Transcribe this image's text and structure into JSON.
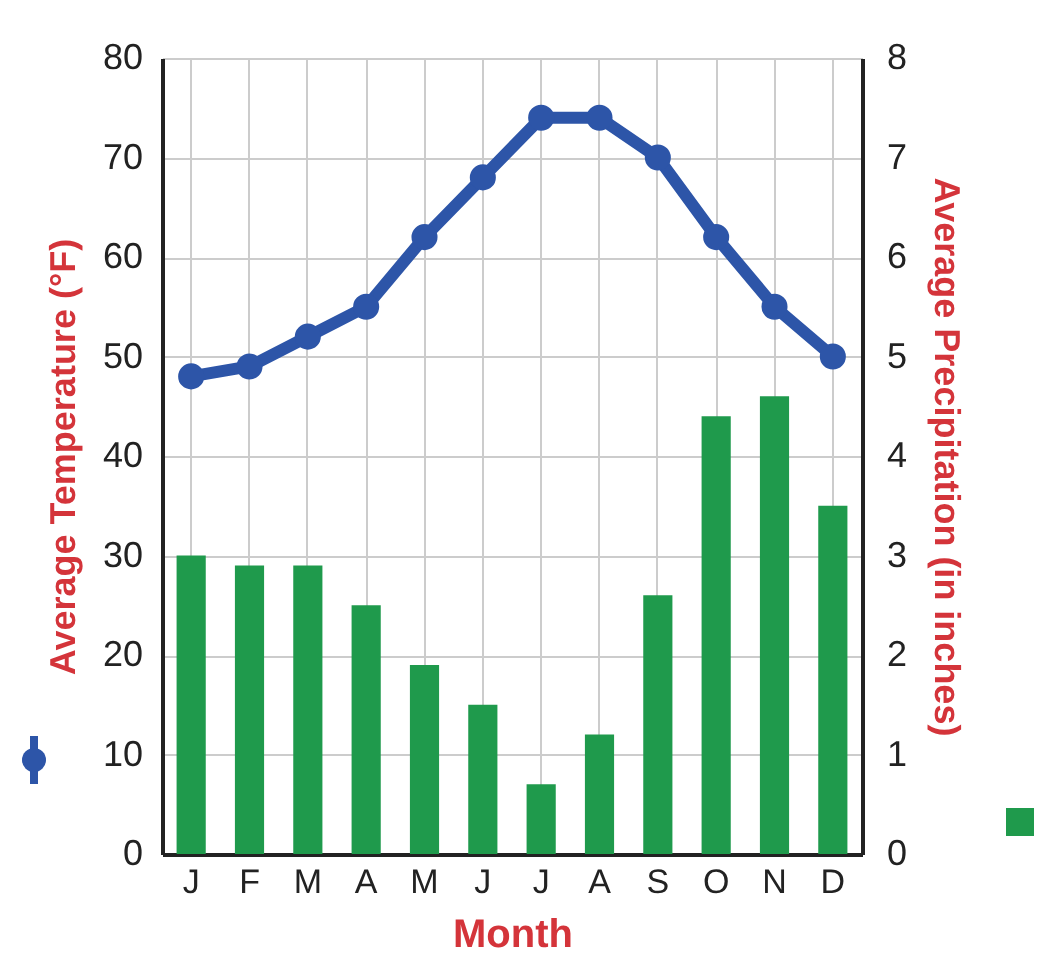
{
  "chart_data": {
    "type": "bar",
    "xlabel": "Month",
    "ylabel": "Average Temperature (°F)",
    "y2label": "Average Precipitation (in inches)",
    "categories": [
      "J",
      "F",
      "M",
      "A",
      "M",
      "J",
      "J",
      "A",
      "S",
      "O",
      "N",
      "D"
    ],
    "series": [
      {
        "type": "line",
        "color": "#2d55a8",
        "values": [
          48,
          49,
          52,
          55,
          62,
          68,
          74,
          74,
          70,
          62,
          55,
          50
        ]
      },
      {
        "axis": "y2",
        "color": "#1f9a4c",
        "values": [
          3.0,
          2.9,
          2.9,
          2.5,
          1.9,
          1.5,
          0.7,
          1.2,
          2.6,
          4.4,
          4.6,
          3.5
        ]
      }
    ],
    "ylim": [
      0,
      80
    ],
    "yticks": [
      0,
      10,
      20,
      30,
      40,
      50,
      60,
      70,
      80
    ],
    "y2lim": [
      0,
      8
    ],
    "y2ticks": [
      0,
      1,
      2,
      3,
      4,
      5,
      6,
      7,
      8
    ],
    "grid": true,
    "marker": "circle",
    "line_style": "solid"
  }
}
